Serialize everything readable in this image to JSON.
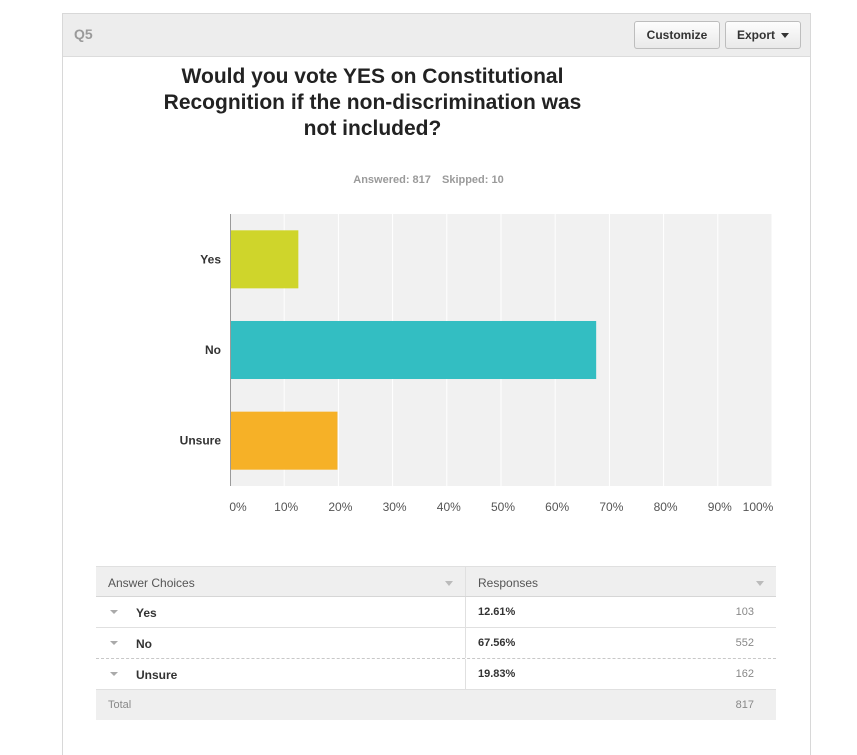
{
  "header": {
    "question_number": "Q5",
    "customize_label": "Customize",
    "export_label": "Export"
  },
  "question": {
    "title_line1": "Would you vote YES on Constitutional",
    "title_line2": "Recognition if the non-discrimination was",
    "title_line3": "not included?",
    "answered": "Answered: 817",
    "skipped": "Skipped: 10"
  },
  "chart_data": {
    "type": "bar",
    "orientation": "horizontal",
    "categories": [
      "Yes",
      "No",
      "Unsure"
    ],
    "values": [
      12.61,
      67.56,
      19.83
    ],
    "colors": [
      "#cfd52b",
      "#33bec2",
      "#f6b127"
    ],
    "xlim": [
      0,
      100
    ],
    "x_ticks": [
      "0%",
      "10%",
      "20%",
      "30%",
      "40%",
      "50%",
      "60%",
      "70%",
      "80%",
      "90%",
      "100%"
    ],
    "grid": true
  },
  "table": {
    "col_choices": "Answer Choices",
    "col_responses": "Responses",
    "rows": [
      {
        "label": "Yes",
        "percent": "12.61%",
        "count": "103"
      },
      {
        "label": "No",
        "percent": "67.56%",
        "count": "552"
      },
      {
        "label": "Unsure",
        "percent": "19.83%",
        "count": "162"
      }
    ],
    "total_label": "Total",
    "total_count": "817"
  }
}
